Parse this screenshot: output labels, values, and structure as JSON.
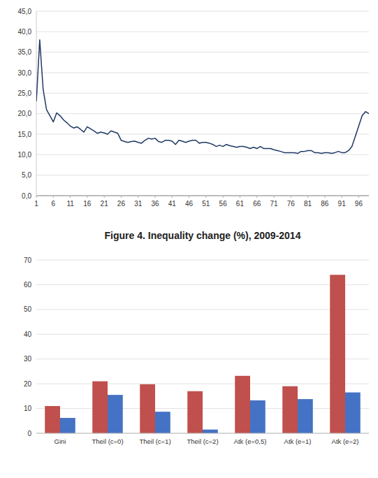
{
  "chart_data": [
    {
      "type": "line",
      "x": [
        1,
        2,
        3,
        4,
        5,
        6,
        7,
        8,
        9,
        10,
        11,
        12,
        13,
        14,
        15,
        16,
        17,
        18,
        19,
        20,
        21,
        22,
        23,
        24,
        25,
        26,
        27,
        28,
        29,
        30,
        31,
        32,
        33,
        34,
        35,
        36,
        37,
        38,
        39,
        40,
        41,
        42,
        43,
        44,
        45,
        46,
        47,
        48,
        49,
        50,
        51,
        52,
        53,
        54,
        55,
        56,
        57,
        58,
        59,
        60,
        61,
        62,
        63,
        64,
        65,
        66,
        67,
        68,
        69,
        70,
        71,
        72,
        73,
        74,
        75,
        76,
        77,
        78,
        79,
        80,
        81,
        82,
        83,
        84,
        85,
        86,
        87,
        88,
        89,
        90,
        91,
        92,
        93,
        94,
        95,
        96,
        97,
        98,
        99
      ],
      "values": [
        23.0,
        38.0,
        26.0,
        21.0,
        19.5,
        18.0,
        20.2,
        19.5,
        18.5,
        17.8,
        17.0,
        16.5,
        16.8,
        16.2,
        15.5,
        16.8,
        16.3,
        15.8,
        15.2,
        15.5,
        15.3,
        15.0,
        15.8,
        15.5,
        15.2,
        13.5,
        13.2,
        13.0,
        13.2,
        13.3,
        13.0,
        12.8,
        13.5,
        14.0,
        13.8,
        14.0,
        13.2,
        13.0,
        13.5,
        13.5,
        13.3,
        12.5,
        13.5,
        13.3,
        13.0,
        13.3,
        13.5,
        13.5,
        12.8,
        13.0,
        13.0,
        12.8,
        12.5,
        12.0,
        12.3,
        12.0,
        12.5,
        12.2,
        12.0,
        11.8,
        12.0,
        12.0,
        11.8,
        11.5,
        11.8,
        11.5,
        12.0,
        11.5,
        11.5,
        11.5,
        11.2,
        11.0,
        10.8,
        10.5,
        10.5,
        10.5,
        10.5,
        10.3,
        10.8,
        10.8,
        11.0,
        11.0,
        10.5,
        10.5,
        10.3,
        10.5,
        10.5,
        10.3,
        10.5,
        10.8,
        10.5,
        10.5,
        11.0,
        12.0,
        14.5,
        17.0,
        19.5,
        20.5,
        20.0
      ],
      "color": "#1F3864",
      "xlim": [
        1,
        99
      ],
      "xticks": [
        1,
        6,
        11,
        16,
        21,
        26,
        31,
        36,
        41,
        46,
        51,
        56,
        61,
        66,
        71,
        76,
        81,
        86,
        91,
        96
      ],
      "ylim": [
        0,
        45
      ],
      "yticks": [
        {
          "value": 0.0,
          "label": "0,0"
        },
        {
          "value": 5.0,
          "label": "5,0"
        },
        {
          "value": 10.0,
          "label": "10,0"
        },
        {
          "value": 15.0,
          "label": "15,0"
        },
        {
          "value": 20.0,
          "label": "20,0"
        },
        {
          "value": 25.0,
          "label": "25,0"
        },
        {
          "value": 30.0,
          "label": "30,0"
        },
        {
          "value": 35.0,
          "label": "35,0"
        },
        {
          "value": 40.0,
          "label": "40,0"
        },
        {
          "value": 45.0,
          "label": "45,0"
        }
      ],
      "grid": true
    },
    {
      "type": "bar",
      "title": "Figure 4. Inequality change (%), 2009-2014",
      "categories": [
        "Gini",
        "Theil (c=0)",
        "Theil (c=1)",
        "Theil (c=2)",
        "Atk (e=0,5)",
        "Atk (e=1)",
        "Atk (e=2)"
      ],
      "series": [
        {
          "color": "#C0504D",
          "values": [
            11.0,
            21.0,
            19.8,
            17.0,
            23.2,
            19.0,
            64.0
          ]
        },
        {
          "color": "#4472C4",
          "values": [
            6.2,
            15.5,
            8.7,
            1.5,
            13.3,
            13.8,
            16.5
          ]
        }
      ],
      "ylim": [
        0,
        70
      ],
      "yticks": [
        0,
        10,
        20,
        30,
        40,
        50,
        60,
        70
      ],
      "grid": true
    }
  ]
}
